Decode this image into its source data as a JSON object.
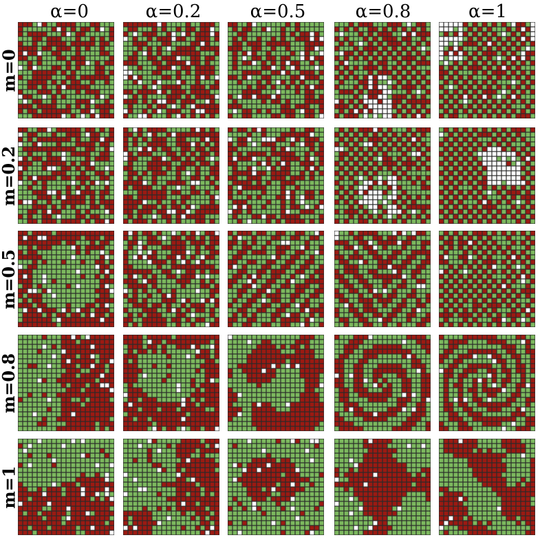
{
  "column_labels": [
    "α=0",
    "α=0.2",
    "α=0.5",
    "α=0.8",
    "α=1"
  ],
  "row_labels": [
    "m=0",
    "m=0.2",
    "m=0.5",
    "m=0.8",
    "m=1"
  ],
  "lattice_size": 20,
  "colors": {
    "state_green": "#7cb85e",
    "state_red": "#9b1a12",
    "state_empty": "#ffffff",
    "grid_line": "#2a2a2a"
  },
  "panel_states": [
    [
      "mixed",
      "mixed",
      "mixed",
      "mixed with empty cluster",
      "checkerboard"
    ],
    [
      "mixed",
      "mixed",
      "mixed",
      "mixed with empty cluster",
      "checkerboard with empty cluster"
    ],
    [
      "green core with red border",
      "mixed",
      "diagonal stripes",
      "diagonal stripes",
      "checkerboard"
    ],
    [
      "green left, red right",
      "green blob in red",
      "mixed clusters",
      "spiral domains",
      "spiral domains"
    ],
    [
      "green top, red bottom",
      "green and red domains",
      "red blob in green",
      "green and red domains",
      "red domains in green"
    ]
  ]
}
